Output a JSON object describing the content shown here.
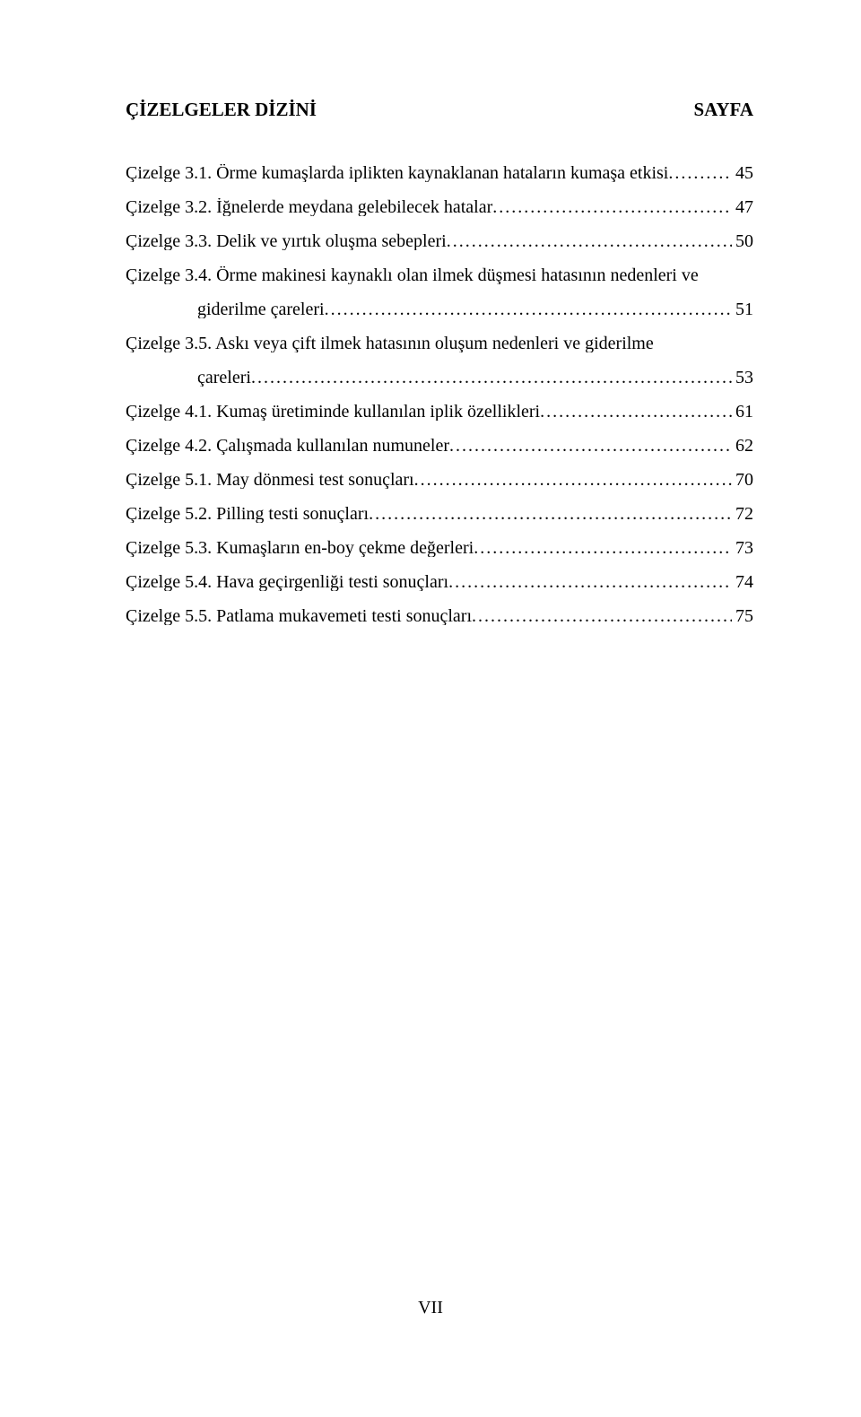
{
  "header": {
    "left": "ÇİZELGELER DİZİNİ",
    "right": "SAYFA"
  },
  "entries": [
    {
      "label": "Çizelge 3.1. Örme kumaşlarda iplikten kaynaklanan hataların kumaşa etkisi",
      "page": "45",
      "wrap": false
    },
    {
      "label": "Çizelge 3.2. İğnelerde meydana gelebilecek hatalar",
      "page": "47",
      "wrap": false
    },
    {
      "label": "Çizelge 3.3. Delik ve yırtık oluşma sebepleri",
      "page": "50",
      "wrap": false
    },
    {
      "label": "Çizelge 3.4. Örme makinesi kaynaklı olan ilmek düşmesi hatasının nedenleri ve",
      "cont": "giderilme çareleri",
      "page": "51",
      "wrap": true
    },
    {
      "label": "Çizelge 3.5. Askı veya çift ilmek hatasının oluşum nedenleri ve giderilme",
      "cont": "çareleri",
      "page": "53",
      "wrap": true
    },
    {
      "label": "Çizelge 4.1. Kumaş üretiminde kullanılan iplik özellikleri",
      "page": "61",
      "wrap": false
    },
    {
      "label": "Çizelge 4.2. Çalışmada kullanılan numuneler",
      "page": "62",
      "wrap": false
    },
    {
      "label": "Çizelge 5.1. May dönmesi test sonuçları",
      "page": "70",
      "wrap": false
    },
    {
      "label": "Çizelge 5.2. Pilling testi sonuçları",
      "page": "72",
      "wrap": false
    },
    {
      "label": "Çizelge 5.3. Kumaşların en-boy çekme değerleri",
      "page": "73",
      "wrap": false
    },
    {
      "label": "Çizelge 5.4. Hava geçirgenliği testi sonuçları",
      "page": "74",
      "wrap": false
    },
    {
      "label": "Çizelge 5.5. Patlama mukavemeti testi  sonuçları",
      "page": "75",
      "wrap": false
    }
  ],
  "footer": "VII"
}
